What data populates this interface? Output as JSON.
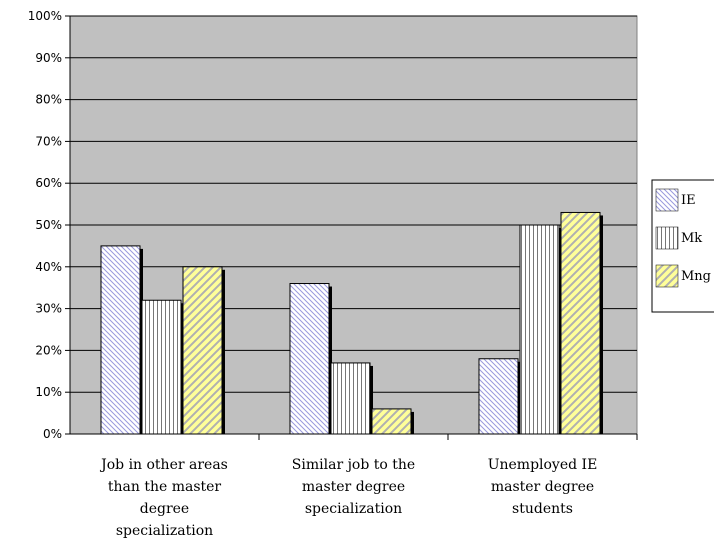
{
  "chart_data": {
    "type": "bar",
    "categories": [
      [
        "Job in other areas",
        "than the master",
        "degree",
        "specialization"
      ],
      [
        "Similar job to the",
        "master degree",
        "specialization"
      ],
      [
        "Unemployed IE",
        "master degree",
        "students"
      ]
    ],
    "series": [
      {
        "name": "IE",
        "values": [
          0.45,
          0.36,
          0.18
        ]
      },
      {
        "name": "Mk",
        "values": [
          0.32,
          0.17,
          0.5
        ]
      },
      {
        "name": "Mng",
        "values": [
          0.4,
          0.06,
          0.53
        ]
      }
    ],
    "ylim": [
      0,
      1
    ],
    "yticks": [
      "0%",
      "10%",
      "20%",
      "30%",
      "40%",
      "50%",
      "60%",
      "70%",
      "80%",
      "90%",
      "100%"
    ],
    "grid": true,
    "legend_position": "right",
    "colors": {
      "plot_bg": "#c0c0c0",
      "IE": "#9999dd",
      "Mk": "#777777",
      "Mng": "#ffff99",
      "Mng_stripe": "#b0b0b0",
      "bar_bg": "#ffffff",
      "shadow": "#000000"
    },
    "legend_labels": [
      "IE",
      "Mk",
      "Mng"
    ]
  }
}
